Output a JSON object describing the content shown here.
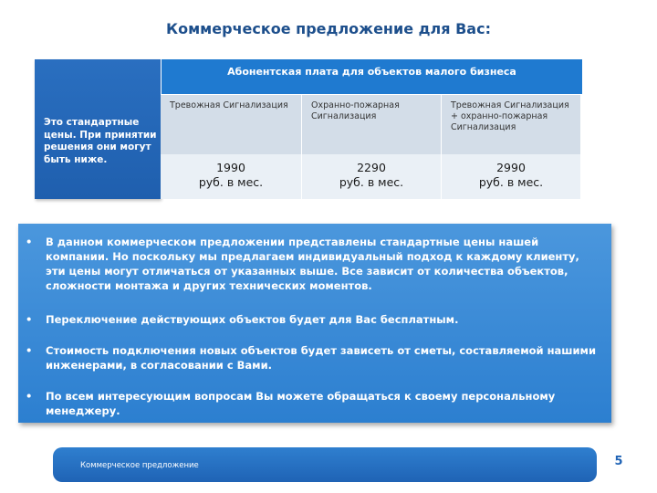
{
  "title": "Коммерческое предложение для Вас:",
  "side_panel": {
    "text": "Это стандартные цены. При принятии решения они могут быть ниже."
  },
  "table": {
    "header": "Абонентская плата для объектов малого бизнеса",
    "plans": [
      {
        "label": "Тревожная Сигнализация",
        "price": "1990\nруб. в мес."
      },
      {
        "label": "Охранно-пожарная Сигнализация",
        "price": "2290\nруб. в мес."
      },
      {
        "label": "Тревожная Сигнализация + охранно-пожарная Сигнализация",
        "price": "2990\nруб. в мес."
      }
    ]
  },
  "bullets": {
    "marker": "•",
    "items": [
      "В данном коммерческом предложении представлены стандартные цены нашей компании. Но поскольку мы предлагаем индивидуальный подход к каждому клиенту, эти цены могут отличаться от указанных выше. Все зависит от количества объектов, сложности монтажа и других технических моментов.",
      "Переключение действующих объектов будет для Вас бесплатным.",
      "Стоимость подключения новых объектов будет зависеть от сметы, составляемой нашими инженерами, в согласовании с Вами.",
      "По всем интересующим вопросам Вы можете обращаться к своему персональному менеджеру."
    ]
  },
  "footer": {
    "label": "Коммерческое предложение",
    "page_number": "5"
  }
}
